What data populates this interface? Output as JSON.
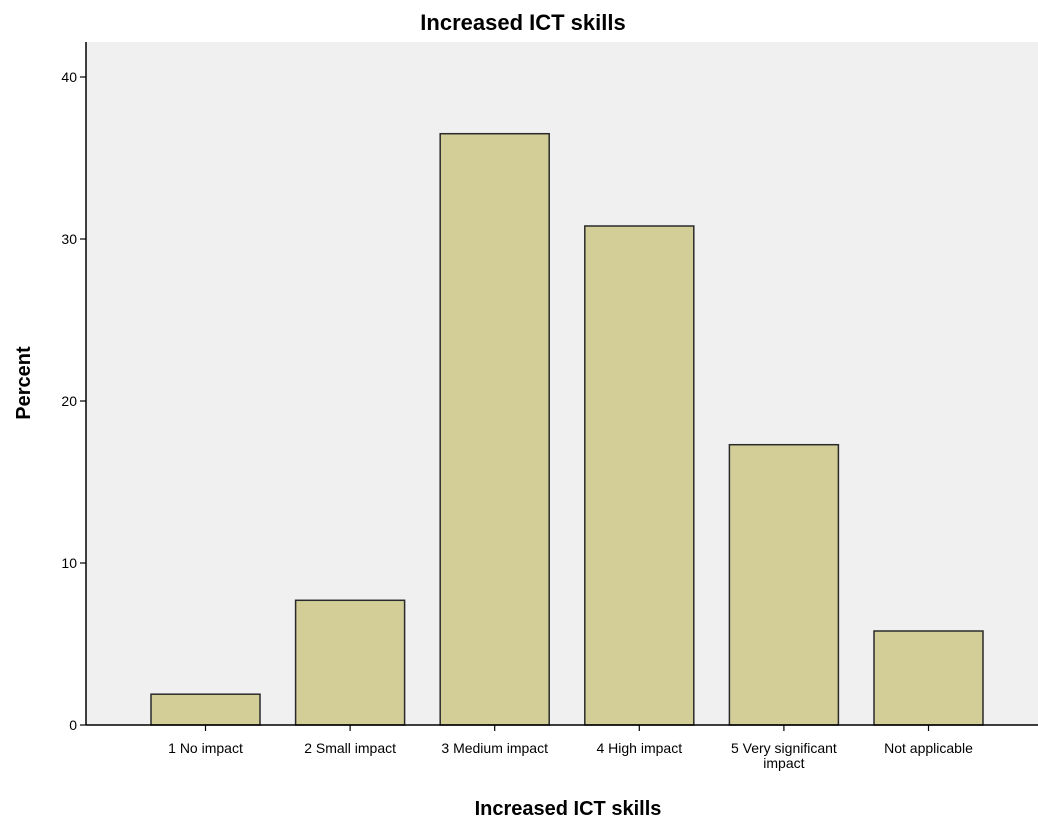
{
  "chart_data": {
    "type": "bar",
    "title": "Increased ICT skills",
    "xlabel": "Increased ICT skills",
    "ylabel": "Percent",
    "categories": [
      "1  No impact",
      "2  Small impact",
      "3  Medium impact",
      "4  High impact",
      "5 Very significant impact",
      "Not applicable"
    ],
    "values": [
      1.9,
      7.7,
      36.5,
      30.8,
      17.3,
      5.8
    ],
    "ylim": [
      0,
      42
    ],
    "yticks": [
      0,
      10,
      20,
      30,
      40
    ],
    "grid": false,
    "legend": "none",
    "colors": {
      "bar_fill": "#d3ce97",
      "bar_stroke": "#2a2a2a",
      "plot_background": "#f0f0f0",
      "axis": "#000000"
    }
  }
}
